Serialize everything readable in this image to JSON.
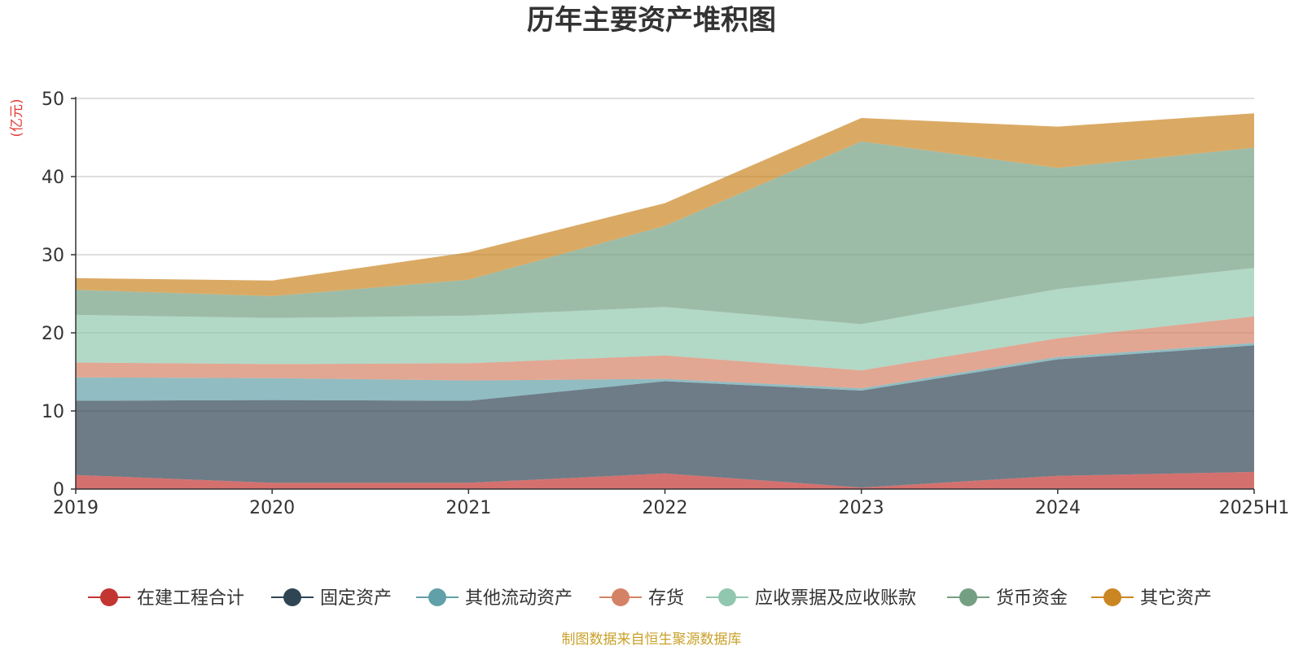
{
  "chart_data": {
    "type": "area",
    "stacked": true,
    "title": "历年主要资产堆积图",
    "ylabel": "(亿元)",
    "categories": [
      "2019",
      "2020",
      "2021",
      "2022",
      "2023",
      "2024",
      "2025H1"
    ],
    "ylim": [
      0,
      50
    ],
    "yticks": [
      0,
      10,
      20,
      30,
      40,
      50
    ],
    "grid": true,
    "legend_position": "bottom",
    "series": [
      {
        "name": "在建工程合计",
        "color": "#c23531",
        "values": [
          1.8,
          0.8,
          0.8,
          2.0,
          0.2,
          1.7,
          2.2
        ]
      },
      {
        "name": "固定资产",
        "color": "#2f4554",
        "values": [
          9.5,
          10.6,
          10.5,
          11.8,
          12.4,
          14.9,
          16.2
        ]
      },
      {
        "name": "其他流动资产",
        "color": "#61a0a8",
        "values": [
          3.0,
          2.8,
          2.6,
          0.3,
          0.3,
          0.3,
          0.3
        ]
      },
      {
        "name": "存货",
        "color": "#d48265",
        "values": [
          1.9,
          1.8,
          2.2,
          3.0,
          2.3,
          2.4,
          3.4
        ]
      },
      {
        "name": "应收票据及应收账款",
        "color": "#91c7ae",
        "values": [
          6.1,
          5.9,
          6.1,
          6.2,
          5.9,
          6.3,
          6.2
        ]
      },
      {
        "name": "货币资金",
        "color": "#749f83",
        "values": [
          3.2,
          2.8,
          4.6,
          10.4,
          23.4,
          15.5,
          15.4
        ]
      },
      {
        "name": "其它资产",
        "color": "#ca8622",
        "values": [
          1.5,
          2.0,
          3.5,
          2.9,
          3.0,
          5.3,
          4.4
        ]
      }
    ]
  },
  "footer": {
    "source": "制图数据来自恒生聚源数据库"
  }
}
